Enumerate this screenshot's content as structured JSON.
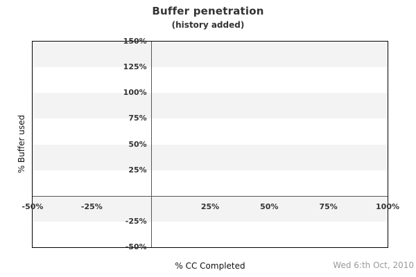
{
  "header": {
    "title": "Buffer penetration",
    "subtitle": "(history added)"
  },
  "footer": {
    "date": "Wed 6:th Oct, 2010"
  },
  "colors": {
    "band_gray": "#f3f3f3",
    "band_white": "#ffffff",
    "plot_border": "#000000",
    "zero_line": "#555555",
    "title_text": "#333333",
    "tick_text": "#333333",
    "axis_label_text": "#111111",
    "date_text": "#999999"
  },
  "chart_data": {
    "type": "line",
    "title": "Buffer penetration",
    "subtitle": "(history added)",
    "xlabel": "% CC Completed",
    "ylabel": "% Buffer used",
    "xlim": [
      -50,
      100
    ],
    "ylim": [
      -50,
      150
    ],
    "x_ticks": [
      {
        "value": -50,
        "label": "-50%"
      },
      {
        "value": -25,
        "label": "-25%"
      },
      {
        "value": 0,
        "label": ""
      },
      {
        "value": 25,
        "label": "25%"
      },
      {
        "value": 50,
        "label": "50%"
      },
      {
        "value": 75,
        "label": "75%"
      },
      {
        "value": 100,
        "label": "100%"
      }
    ],
    "y_ticks": [
      {
        "value": 150,
        "label": "150%"
      },
      {
        "value": 125,
        "label": "125%"
      },
      {
        "value": 100,
        "label": "100%"
      },
      {
        "value": 75,
        "label": "75%"
      },
      {
        "value": 50,
        "label": "50%"
      },
      {
        "value": 25,
        "label": "25%"
      },
      {
        "value": 0,
        "label": ""
      },
      {
        "value": -25,
        "label": "-25%"
      },
      {
        "value": -50,
        "label": "-50%"
      }
    ],
    "grid": "alternating horizontal bands every 25%, gray/white, starting gray at top",
    "legend": "none",
    "series": [],
    "annotations": [
      "zero axis lines drawn at x=0% and y=0%"
    ]
  }
}
